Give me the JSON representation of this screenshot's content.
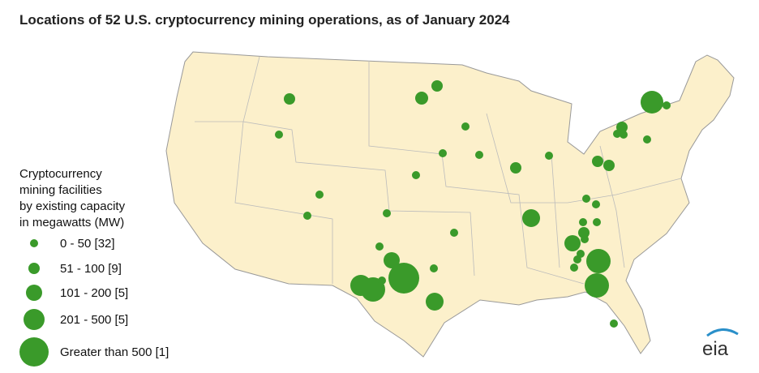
{
  "title": "Locations of 52 U.S. cryptocurrency mining operations, as of January 2024",
  "legend": {
    "title_lines": [
      "Cryptocurrency",
      "mining facilities",
      "by existing capacity",
      "in megawatts (MW)"
    ],
    "items": [
      "0 - 50 [32]",
      "51 - 100 [9]",
      "101 - 200 [5]",
      "201 - 500 [5]",
      "Greater than 500 [1]"
    ]
  },
  "logo": "eia"
}
